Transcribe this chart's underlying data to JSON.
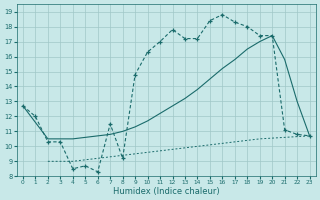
{
  "xlabel": "Humidex (Indice chaleur)",
  "bg_color": "#c8e8e8",
  "grid_color": "#a0c8c8",
  "line_color": "#1a6b6b",
  "xlim": [
    -0.5,
    23.5
  ],
  "ylim": [
    8,
    19.5
  ],
  "xticks": [
    0,
    1,
    2,
    3,
    4,
    5,
    6,
    7,
    8,
    9,
    10,
    11,
    12,
    13,
    14,
    15,
    16,
    17,
    18,
    19,
    20,
    21,
    22,
    23
  ],
  "yticks": [
    8,
    9,
    10,
    11,
    12,
    13,
    14,
    15,
    16,
    17,
    18,
    19
  ],
  "line1_x": [
    0,
    1,
    2,
    3,
    4,
    5,
    6,
    7,
    8,
    9,
    10,
    11,
    12,
    13,
    14,
    15,
    16,
    17,
    18,
    19,
    20,
    21,
    22,
    23
  ],
  "line1_y": [
    12.7,
    12.0,
    10.3,
    10.3,
    8.5,
    8.7,
    8.3,
    11.5,
    9.2,
    14.8,
    16.3,
    17.0,
    17.8,
    17.2,
    17.2,
    18.4,
    18.8,
    18.3,
    18.0,
    17.4,
    17.4,
    11.1,
    10.8,
    10.7
  ],
  "line2_x": [
    0,
    2,
    3,
    4,
    5,
    6,
    7,
    8,
    9,
    10,
    11,
    12,
    13,
    14,
    15,
    16,
    17,
    18,
    19,
    20,
    21,
    22,
    23
  ],
  "line2_y": [
    12.7,
    10.5,
    10.5,
    10.5,
    10.6,
    10.7,
    10.8,
    11.0,
    11.3,
    11.7,
    12.2,
    12.7,
    13.2,
    13.8,
    14.5,
    15.2,
    15.8,
    16.5,
    17.0,
    17.4,
    15.8,
    13.0,
    10.7
  ],
  "line3_x": [
    2,
    3,
    4,
    5,
    6,
    7,
    8,
    9,
    10,
    11,
    12,
    13,
    14,
    15,
    16,
    17,
    18,
    19,
    20,
    21,
    22,
    23
  ],
  "line3_y": [
    9.0,
    9.0,
    9.0,
    9.1,
    9.2,
    9.3,
    9.4,
    9.5,
    9.6,
    9.7,
    9.8,
    9.9,
    10.0,
    10.1,
    10.2,
    10.3,
    10.4,
    10.5,
    10.55,
    10.6,
    10.65,
    10.7
  ]
}
